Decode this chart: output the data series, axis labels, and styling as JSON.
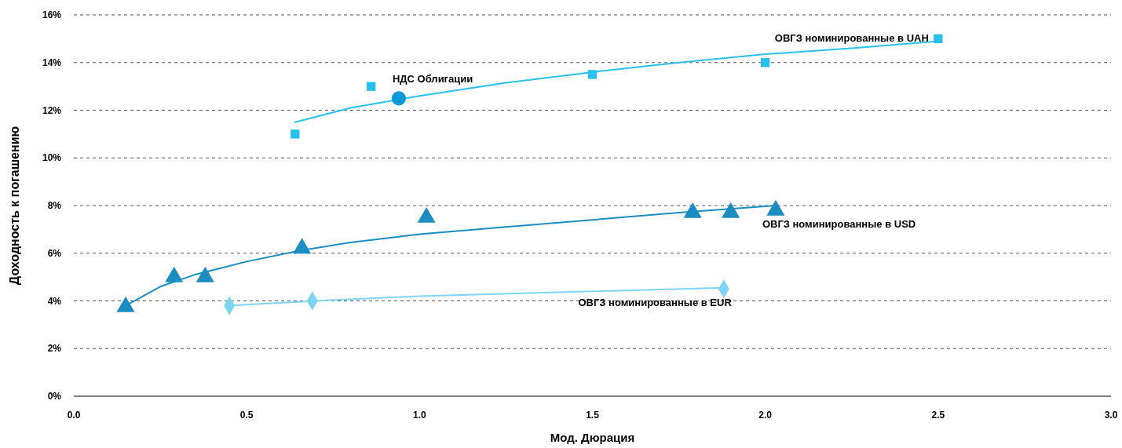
{
  "chart_data": {
    "type": "scatter",
    "xlabel": "Мод. Дюрация",
    "ylabel": "Доходность к погашению",
    "xlim": [
      0,
      3
    ],
    "xticks": [
      {
        "value": 0,
        "label": "0.0"
      },
      {
        "value": 0.5,
        "label": "0.5"
      },
      {
        "value": 1,
        "label": "1.0"
      },
      {
        "value": 1.5,
        "label": "1.5"
      },
      {
        "value": 2,
        "label": "2.0"
      },
      {
        "value": 2.5,
        "label": "2.5"
      },
      {
        "value": 3,
        "label": "3.0"
      }
    ],
    "ylim": [
      0,
      16
    ],
    "yticks": [
      {
        "value": 0,
        "label": "0%"
      },
      {
        "value": 2,
        "label": "2%"
      },
      {
        "value": 4,
        "label": "4%"
      },
      {
        "value": 6,
        "label": "6%"
      },
      {
        "value": 8,
        "label": "8%"
      },
      {
        "value": 10,
        "label": "10%"
      },
      {
        "value": 12,
        "label": "12%"
      },
      {
        "value": 14,
        "label": "14%"
      },
      {
        "value": 16,
        "label": "16%"
      }
    ],
    "grid": "y",
    "line_style": "dashed",
    "series": [
      {
        "type": "line",
        "color": "#29c0ef",
        "x": [
          0.64,
          0.8,
          1.0,
          1.25,
          1.5,
          1.75,
          2.0,
          2.25,
          2.5
        ],
        "values": [
          11.5,
          12.1,
          12.6,
          13.15,
          13.6,
          14.0,
          14.35,
          14.6,
          14.9
        ],
        "marker": "none",
        "line_style": "solid"
      },
      {
        "type": "line",
        "color": "#1b8dc1",
        "x": [
          0.15,
          0.25,
          0.35,
          0.5,
          0.65,
          0.8,
          1.0,
          1.25,
          1.5,
          1.75,
          2.03
        ],
        "values": [
          3.8,
          4.6,
          5.1,
          5.65,
          6.1,
          6.45,
          6.8,
          7.1,
          7.4,
          7.7,
          8.0
        ],
        "marker": "none",
        "line_style": "solid"
      },
      {
        "type": "line",
        "color": "#7fd4f5",
        "x": [
          0.45,
          0.7,
          1.0,
          1.5,
          1.88
        ],
        "values": [
          3.8,
          4.0,
          4.2,
          4.4,
          4.55
        ],
        "marker": "none",
        "line_style": "solid"
      },
      {
        "name": "ОВГЗ номинированные в UAH",
        "color": "#29c0ef",
        "marker": "square",
        "x": [
          0.64,
          0.86,
          1.5,
          2.0,
          2.5
        ],
        "values": [
          11.0,
          13.0,
          13.5,
          14.0,
          15.0
        ]
      },
      {
        "name": "ОВГЗ номинированные в USD",
        "color": "#1b8dc1",
        "marker": "triangle",
        "x": [
          0.15,
          0.29,
          0.38,
          0.66,
          1.02,
          1.79,
          1.9,
          2.03
        ],
        "values": [
          3.75,
          5.0,
          5.0,
          6.2,
          7.5,
          7.7,
          7.7,
          7.8
        ]
      },
      {
        "name": "ОВГЗ номинированные в EUR",
        "color": "#7fd4f5",
        "marker": "diamond",
        "x": [
          0.45,
          0.69,
          1.88
        ],
        "values": [
          3.8,
          4.0,
          4.5
        ]
      },
      {
        "name": "НДС  Облигации",
        "color": "#0a9ad8",
        "marker": "circle",
        "x": [
          0.94
        ],
        "values": [
          12.5
        ]
      }
    ]
  }
}
